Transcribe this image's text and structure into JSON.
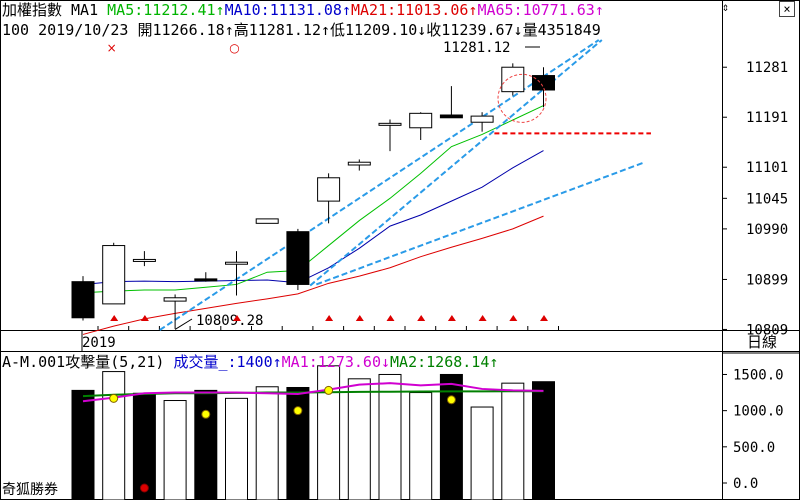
{
  "window": {
    "close_label": "×",
    "scroll_up_label": "⇕",
    "period_button": "日線",
    "footer_label": "奇狐勝券"
  },
  "header": {
    "line1": [
      {
        "text": "加權指數 MA1 ",
        "color": "black"
      },
      {
        "text": "MA5:11212.41↑",
        "color": "green"
      },
      {
        "text": "MA10:11131.08↑",
        "color": "blue"
      },
      {
        "text": "MA21:11013.06↑",
        "color": "red"
      },
      {
        "text": "MA65:10771.63↑",
        "color": "mag"
      }
    ],
    "line2": "100 2019/10/23 開11266.18↑高11281.12↑低11209.10↓收11239.67↓量4351849"
  },
  "volume_header": [
    {
      "text": "A-M.001攻擊量(5,21) ",
      "color": "black"
    },
    {
      "text": "成交量_:1400↑",
      "color": "blue"
    },
    {
      "text": "MA1:1273.60↓",
      "color": "mag"
    },
    {
      "text": "MA2:1268.14↑",
      "color": "dkgreen"
    }
  ],
  "chart_data": [
    {
      "type": "candlestick",
      "name": "加權指數",
      "price_axis_ticks": [
        "11281",
        "11191",
        "11101",
        "11045",
        "10990",
        "10899",
        "10809"
      ],
      "ylim": [
        10790,
        11330
      ],
      "x_label": "2019",
      "candles": [
        {
          "o": 10895,
          "h": 10905,
          "l": 10825,
          "c": 10830
        },
        {
          "o": 10855,
          "h": 10965,
          "l": 10855,
          "c": 10960
        },
        {
          "o": 10935,
          "h": 10950,
          "l": 10923,
          "c": 10935
        },
        {
          "o": 10860,
          "h": 10872,
          "l": 10810,
          "c": 10866
        },
        {
          "o": 10900,
          "h": 10912,
          "l": 10895,
          "c": 10898
        },
        {
          "o": 10927,
          "h": 10950,
          "l": 10870,
          "c": 10930
        },
        {
          "o": 11000,
          "h": 11008,
          "l": 11000,
          "c": 11008
        },
        {
          "o": 10985,
          "h": 10990,
          "l": 10880,
          "c": 10890
        },
        {
          "o": 11040,
          "h": 11090,
          "l": 11000,
          "c": 11082
        },
        {
          "o": 11105,
          "h": 11115,
          "l": 11095,
          "c": 11110
        },
        {
          "o": 11180,
          "h": 11187,
          "l": 11130,
          "c": 11180
        },
        {
          "o": 11172,
          "h": 11200,
          "l": 11150,
          "c": 11198
        },
        {
          "o": 11195,
          "h": 11247,
          "l": 11190,
          "c": 11190
        },
        {
          "o": 11182,
          "h": 11200,
          "l": 11165,
          "c": 11193
        },
        {
          "o": 11237,
          "h": 11288,
          "l": 11230,
          "c": 11281
        },
        {
          "o": 11266,
          "h": 11281,
          "l": 11209,
          "c": 11240
        }
      ],
      "ma5": [
        10875,
        10878,
        10880,
        10880,
        10885,
        10890,
        10912,
        10915,
        10960,
        11005,
        11045,
        11090,
        11138,
        11160,
        11186,
        11212
      ],
      "ma10": [
        10890,
        10895,
        10896,
        10895,
        10896,
        10897,
        10898,
        10893,
        10920,
        10955,
        10995,
        11015,
        11040,
        11065,
        11100,
        11131
      ],
      "ma21": [
        10800,
        10815,
        10828,
        10838,
        10847,
        10856,
        10864,
        10873,
        10892,
        10905,
        10920,
        10940,
        10957,
        10973,
        10990,
        11013
      ],
      "trend_lines": [
        {
          "from": {
            "i": 7.4,
            "v": 10888
          },
          "to": {
            "i": 16.9,
            "v": 11330
          }
        },
        {
          "from": {
            "i": 7.6,
            "v": 10890
          },
          "to": {
            "i": 18.3,
            "v": 11110
          }
        },
        {
          "from": {
            "i": 2.5,
            "v": 10808
          },
          "to": {
            "i": 16.8,
            "v": 11330
          }
        }
      ],
      "support_line": {
        "from_i": 13.4,
        "to_i": 18.5,
        "v": 11162
      },
      "annotations": {
        "high_label": "11281.12",
        "low_label": "10809.28",
        "circle_center": {
          "i": 14.3,
          "v": 11225
        }
      },
      "signal_markers": [
        1,
        2,
        5,
        8,
        9,
        10,
        11,
        12,
        13,
        14,
        15
      ],
      "top_marks": [
        {
          "i": 1,
          "symbol": "×"
        },
        {
          "i": 5,
          "symbol": "○"
        }
      ]
    },
    {
      "type": "bar",
      "name": "攻擊量",
      "volume_axis_ticks": [
        "1500.0",
        "1000.0",
        "500.0",
        "0.0"
      ],
      "ylim": [
        0,
        1700
      ],
      "bars": [
        1280,
        1540,
        1240,
        1140,
        1280,
        1170,
        1330,
        1320,
        1620,
        1440,
        1500,
        1250,
        1500,
        1050,
        1380,
        1400
      ],
      "filled": [
        true,
        false,
        true,
        false,
        true,
        false,
        false,
        true,
        false,
        false,
        false,
        false,
        true,
        false,
        false,
        true
      ],
      "ma1": [
        1130,
        1180,
        1240,
        1250,
        1250,
        1250,
        1240,
        1230,
        1290,
        1360,
        1380,
        1350,
        1370,
        1300,
        1280,
        1273.6
      ],
      "ma2": [
        1200,
        1220,
        1230,
        1240,
        1240,
        1245,
        1250,
        1250,
        1255,
        1260,
        1262,
        1264,
        1266,
        1267,
        1268,
        1268.14
      ],
      "yellow_dots": [
        {
          "i": 1,
          "v": 1170
        },
        {
          "i": 4,
          "v": 950
        },
        {
          "i": 7,
          "v": 1000
        },
        {
          "i": 8,
          "v": 1280
        },
        {
          "i": 12,
          "v": 1150
        }
      ],
      "red_dots": [
        {
          "i": 2,
          "v": -60
        }
      ]
    }
  ]
}
